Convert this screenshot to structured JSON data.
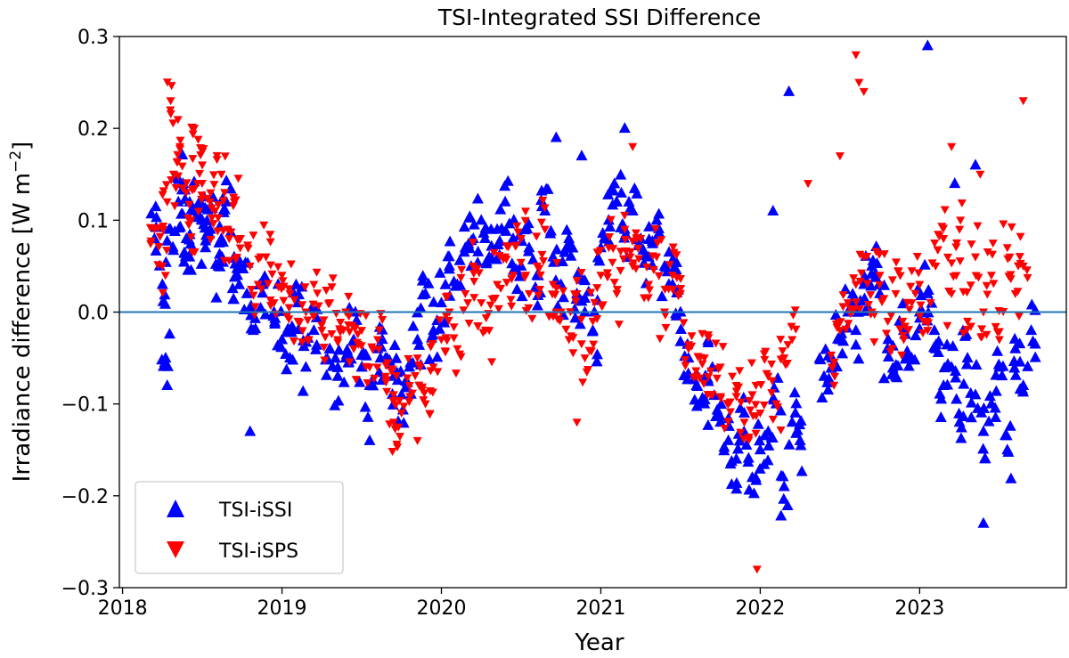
{
  "chart_data": {
    "type": "scatter",
    "title": "TSI-Integrated SSI Difference",
    "xlabel": "Year",
    "ylabel": "Irradiance difference [W m⁻²]",
    "ylabel_parts": {
      "main": "Irradiance difference [W m",
      "sup": "−2",
      "end": "]"
    },
    "xlim": [
      2017.98,
      2023.92
    ],
    "ylim": [
      -0.3,
      0.3
    ],
    "x_ticks": [
      2018,
      2019,
      2020,
      2021,
      2022,
      2023
    ],
    "x_tick_labels": [
      "2018",
      "2019",
      "2020",
      "2021",
      "2022",
      "2023"
    ],
    "y_ticks": [
      -0.3,
      -0.2,
      -0.1,
      0.0,
      0.1,
      0.2,
      0.3
    ],
    "y_tick_labels": [
      "−0.3",
      "−0.2",
      "−0.1",
      "0.0",
      "0.1",
      "0.2",
      "0.3"
    ],
    "reference_line": {
      "y": 0.0,
      "color": "#1f77b4"
    },
    "legend_position": "lower-left",
    "series": [
      {
        "name": "TSI-iSSI",
        "marker": "triangle-up",
        "color": "#0000ff",
        "x": [
          2018.2,
          2018.25,
          2018.27,
          2018.3,
          2018.35,
          2018.38,
          2018.4,
          2018.42,
          2018.45,
          2018.5,
          2018.52,
          2018.55,
          2018.6,
          2018.62,
          2018.65,
          2018.7,
          2018.72,
          2018.78,
          2018.82,
          2018.88,
          2018.95,
          2019.0,
          2019.05,
          2019.1,
          2019.15,
          2019.2,
          2019.3,
          2019.35,
          2019.4,
          2019.45,
          2019.5,
          2019.55,
          2019.6,
          2019.65,
          2019.7,
          2019.75,
          2019.8,
          2019.85,
          2019.9,
          2019.95,
          2020.0,
          2020.05,
          2020.1,
          2020.15,
          2020.2,
          2020.25,
          2020.3,
          2020.35,
          2020.4,
          2020.45,
          2020.5,
          2020.55,
          2020.6,
          2020.65,
          2020.7,
          2020.75,
          2020.8,
          2020.85,
          2020.9,
          2020.95,
          2021.0,
          2021.05,
          2021.1,
          2021.15,
          2021.2,
          2021.25,
          2021.3,
          2021.35,
          2021.4,
          2021.45,
          2021.5,
          2021.55,
          2021.6,
          2021.65,
          2021.7,
          2021.75,
          2021.8,
          2021.85,
          2021.9,
          2021.95,
          2022.0,
          2022.05,
          2022.1,
          2022.15,
          2022.2,
          2022.25,
          2022.4,
          2022.45,
          2022.5,
          2022.55,
          2022.6,
          2022.65,
          2022.7,
          2022.75,
          2022.8,
          2022.85,
          2022.9,
          2022.95,
          2023.0,
          2023.05,
          2023.1,
          2023.15,
          2023.2,
          2023.25,
          2023.3,
          2023.35,
          2023.4,
          2023.45,
          2023.5,
          2023.55,
          2023.6,
          2023.65,
          2023.7,
          2018.28,
          2018.8,
          2019.55,
          2020.72,
          2020.88,
          2021.15,
          2022.18,
          2023.05,
          2023.35,
          2023.4,
          2022.08,
          2023.22
        ],
        "y": [
          0.08,
          0.03,
          -0.05,
          0.09,
          0.12,
          0.14,
          0.08,
          0.06,
          0.11,
          0.1,
          0.07,
          0.09,
          0.05,
          0.08,
          0.12,
          0.06,
          0.04,
          0.02,
          -0.02,
          0.03,
          0.0,
          -0.03,
          -0.05,
          0.01,
          -0.06,
          -0.02,
          -0.04,
          -0.07,
          -0.05,
          -0.03,
          -0.06,
          -0.08,
          -0.04,
          -0.05,
          -0.07,
          -0.09,
          -0.06,
          -0.03,
          0.02,
          -0.02,
          0.01,
          0.05,
          0.03,
          0.07,
          0.08,
          0.1,
          0.06,
          0.09,
          0.12,
          0.08,
          0.05,
          0.07,
          0.04,
          0.11,
          0.06,
          0.03,
          0.08,
          0.02,
          0.0,
          -0.02,
          0.07,
          0.1,
          0.12,
          0.09,
          0.11,
          0.08,
          0.06,
          0.1,
          0.05,
          0.03,
          0.0,
          -0.05,
          -0.08,
          -0.1,
          -0.06,
          -0.12,
          -0.14,
          -0.16,
          -0.11,
          -0.18,
          -0.15,
          -0.13,
          -0.1,
          -0.19,
          -0.12,
          -0.14,
          -0.07,
          -0.05,
          -0.03,
          0.0,
          -0.02,
          0.03,
          0.05,
          0.02,
          -0.04,
          -0.07,
          -0.02,
          -0.05,
          0.0,
          0.02,
          -0.04,
          -0.08,
          -0.06,
          -0.12,
          -0.05,
          -0.09,
          -0.13,
          -0.1,
          -0.06,
          -0.15,
          -0.04,
          -0.08,
          -0.02,
          -0.08,
          -0.13,
          -0.14,
          0.19,
          0.17,
          0.2,
          0.24,
          0.29,
          0.16,
          -0.23,
          0.11,
          0.14
        ],
        "_offsets": [
          0,
          0
        ]
      },
      {
        "name": "TSI-iSPS",
        "marker": "triangle-down",
        "color": "#ff0000",
        "x": [
          2018.2,
          2018.25,
          2018.28,
          2018.32,
          2018.36,
          2018.4,
          2018.43,
          2018.47,
          2018.5,
          2018.55,
          2018.58,
          2018.62,
          2018.66,
          2018.7,
          2018.74,
          2018.8,
          2018.85,
          2018.9,
          2018.95,
          2019.0,
          2019.05,
          2019.1,
          2019.15,
          2019.2,
          2019.25,
          2019.3,
          2019.35,
          2019.4,
          2019.45,
          2019.5,
          2019.55,
          2019.6,
          2019.65,
          2019.7,
          2019.75,
          2019.8,
          2019.85,
          2019.9,
          2019.95,
          2020.0,
          2020.05,
          2020.1,
          2020.15,
          2020.2,
          2020.25,
          2020.3,
          2020.35,
          2020.4,
          2020.45,
          2020.5,
          2020.55,
          2020.6,
          2020.65,
          2020.7,
          2020.75,
          2020.8,
          2020.85,
          2020.9,
          2020.95,
          2021.0,
          2021.05,
          2021.1,
          2021.15,
          2021.2,
          2021.25,
          2021.3,
          2021.35,
          2021.4,
          2021.45,
          2021.5,
          2021.55,
          2021.6,
          2021.65,
          2021.7,
          2021.75,
          2021.8,
          2021.85,
          2021.9,
          2021.95,
          2022.0,
          2022.05,
          2022.1,
          2022.15,
          2022.2,
          2022.45,
          2022.5,
          2022.55,
          2022.6,
          2022.65,
          2022.7,
          2022.75,
          2022.8,
          2022.85,
          2022.9,
          2022.95,
          2023.0,
          2023.05,
          2023.1,
          2023.15,
          2023.2,
          2023.25,
          2023.3,
          2023.35,
          2023.4,
          2023.45,
          2023.5,
          2023.55,
          2023.6,
          2023.65,
          2018.3,
          2018.45,
          2019.7,
          2019.85,
          2020.85,
          2021.2,
          2022.6,
          2022.62,
          2022.65,
          2023.2,
          2023.38,
          2023.65,
          2021.98,
          2022.3,
          2022.5
        ],
        "y": [
          0.09,
          0.05,
          0.12,
          0.15,
          0.18,
          0.13,
          0.1,
          0.14,
          0.16,
          0.12,
          0.11,
          0.15,
          0.09,
          0.12,
          0.08,
          0.05,
          0.03,
          0.06,
          0.01,
          0.04,
          0.02,
          -0.01,
          0.0,
          0.03,
          -0.02,
          0.01,
          -0.03,
          0.0,
          -0.04,
          -0.02,
          -0.06,
          -0.03,
          -0.07,
          -0.09,
          -0.11,
          -0.08,
          -0.05,
          -0.1,
          -0.06,
          -0.03,
          0.0,
          -0.04,
          0.02,
          0.05,
          0.01,
          -0.02,
          0.03,
          0.06,
          0.04,
          0.08,
          0.02,
          0.05,
          0.09,
          0.03,
          0.0,
          -0.03,
          0.02,
          -0.05,
          -0.01,
          0.04,
          0.07,
          0.02,
          0.09,
          0.05,
          0.08,
          0.03,
          0.06,
          0.0,
          0.04,
          0.02,
          -0.04,
          -0.07,
          -0.05,
          -0.09,
          -0.06,
          -0.1,
          -0.08,
          -0.12,
          -0.09,
          -0.11,
          -0.07,
          -0.1,
          -0.05,
          -0.03,
          -0.06,
          -0.02,
          0.01,
          0.03,
          0.06,
          0.0,
          0.04,
          -0.01,
          0.02,
          -0.03,
          0.01,
          0.03,
          -0.02,
          0.05,
          0.08,
          0.02,
          0.09,
          -0.01,
          0.06,
          0.0,
          0.04,
          -0.03,
          0.07,
          0.02,
          0.05,
          0.22,
          0.2,
          -0.12,
          -0.14,
          -0.12,
          0.18,
          0.28,
          0.25,
          0.24,
          0.18,
          0.15,
          0.23,
          -0.28,
          0.14,
          0.17
        ],
        "_offsets": [
          0,
          0
        ]
      }
    ],
    "density": 6
  }
}
